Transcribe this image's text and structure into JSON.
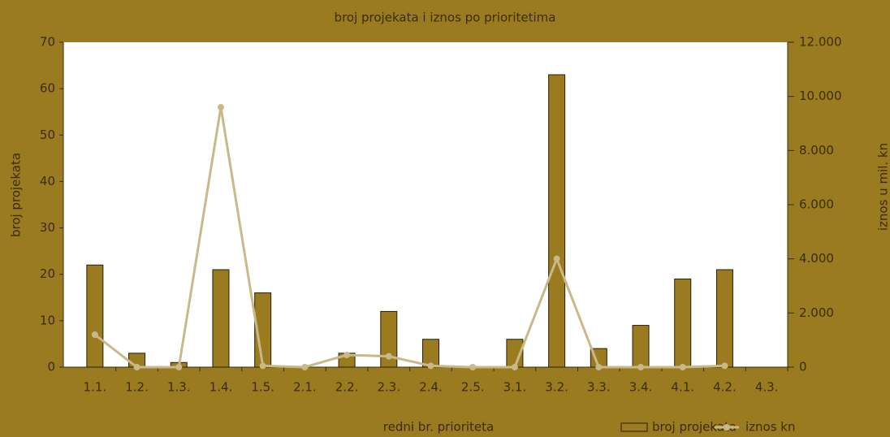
{
  "chart_data": {
    "type": "bar-line",
    "title": "broj projekata i iznos po prioritetima",
    "x_label": "redni br. prioriteta",
    "y_label": "broj projekata",
    "y2_label": "iznos u mil. kn",
    "categories": [
      "1.1.",
      "1.2.",
      "1.3.",
      "1.4.",
      "1.5.",
      "2.1.",
      "2.2.",
      "2.3.",
      "2.4.",
      "2.5.",
      "3.1.",
      "3.2.",
      "3.3.",
      "3.4.",
      "4.1.",
      "4.2.",
      "4.3."
    ],
    "series": [
      {
        "name": "broj projekata",
        "type": "bar",
        "color": "#9a7b1f",
        "values": [
          22,
          3,
          1,
          21,
          16,
          0,
          3,
          12,
          6,
          0,
          6,
          63,
          4,
          9,
          19,
          21,
          0
        ]
      },
      {
        "name": "iznos kn",
        "type": "line",
        "axis": "y2",
        "color": "#c9b98a",
        "values": [
          1200,
          0,
          0,
          9600,
          50,
          0,
          450,
          400,
          50,
          0,
          0,
          4000,
          0,
          0,
          0,
          50,
          null
        ]
      }
    ],
    "ylim": [
      0,
      70
    ],
    "yticks": [
      0,
      10,
      20,
      30,
      40,
      50,
      60,
      70
    ],
    "y2lim": [
      0,
      12000
    ],
    "y2ticks": [
      0,
      {
        "value": 2000,
        "label": "2.000"
      },
      {
        "value": 4000,
        "label": "4.000"
      },
      {
        "value": 6000,
        "label": "6.000"
      },
      {
        "value": 8000,
        "label": "8.000"
      },
      {
        "value": 10000,
        "label": "10.000"
      },
      {
        "value": 12000,
        "label": "12.000"
      }
    ]
  }
}
